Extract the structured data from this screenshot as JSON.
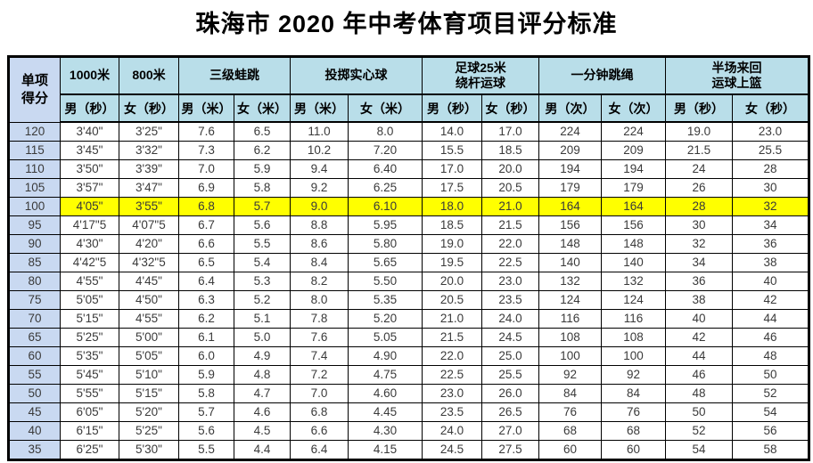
{
  "page_title": "珠海市 2020 年中考体育项目评分标准",
  "table": {
    "corner_header": "单项\n得分",
    "groups": [
      {
        "label": "1000米",
        "subcols": [
          "男（秒）"
        ]
      },
      {
        "label": "800米",
        "subcols": [
          "女（秒）"
        ]
      },
      {
        "label": "三级蛙跳",
        "subcols": [
          "男（米）",
          "女（米）"
        ]
      },
      {
        "label": "投掷实心球",
        "subcols": [
          "男（米）",
          "女（米）"
        ]
      },
      {
        "label": "足球25米\n绕杆运球",
        "subcols": [
          "男（秒）",
          "女（秒）"
        ]
      },
      {
        "label": "一分钟跳绳",
        "subcols": [
          "男（次）",
          "女（次）"
        ]
      },
      {
        "label": "半场来回\n运球上篮",
        "subcols": [
          "男（秒）",
          "女（秒）"
        ]
      }
    ],
    "rows": [
      {
        "score": "120",
        "values": [
          "3'40\"",
          "3'25\"",
          "7.6",
          "6.5",
          "11.0",
          "8.0",
          "14.0",
          "17.0",
          "224",
          "224",
          "19.0",
          "23.0"
        ]
      },
      {
        "score": "115",
        "values": [
          "3'45\"",
          "3'32\"",
          "7.3",
          "6.2",
          "10.2",
          "7.20",
          "15.5",
          "18.5",
          "209",
          "209",
          "21.5",
          "25.5"
        ]
      },
      {
        "score": "110",
        "values": [
          "3'50\"",
          "3'39\"",
          "7.0",
          "5.9",
          "9.4",
          "6.40",
          "17.0",
          "20.0",
          "194",
          "194",
          "24",
          "28"
        ]
      },
      {
        "score": "105",
        "values": [
          "3'57\"",
          "3'47\"",
          "6.9",
          "5.8",
          "9.2",
          "6.25",
          "17.5",
          "20.5",
          "179",
          "179",
          "26",
          "30"
        ]
      },
      {
        "score": "100",
        "values": [
          "4'05\"",
          "3'55\"",
          "6.8",
          "5.7",
          "9.0",
          "6.10",
          "18.0",
          "21.0",
          "164",
          "164",
          "28",
          "32"
        ],
        "highlight": true
      },
      {
        "score": "95",
        "values": [
          "4'17\"5",
          "4'07\"5",
          "6.7",
          "5.6",
          "8.8",
          "5.95",
          "18.5",
          "21.5",
          "156",
          "156",
          "30",
          "34"
        ]
      },
      {
        "score": "90",
        "values": [
          "4'30\"",
          "4'20\"",
          "6.6",
          "5.5",
          "8.6",
          "5.80",
          "19.0",
          "22.0",
          "148",
          "148",
          "32",
          "36"
        ]
      },
      {
        "score": "85",
        "values": [
          "4'42\"5",
          "4'32\"5",
          "6.5",
          "5.4",
          "8.4",
          "5.65",
          "19.5",
          "22.5",
          "140",
          "140",
          "34",
          "38"
        ]
      },
      {
        "score": "80",
        "values": [
          "4'55\"",
          "4'45\"",
          "6.4",
          "5.3",
          "8.2",
          "5.50",
          "20.0",
          "23.0",
          "132",
          "132",
          "36",
          "40"
        ]
      },
      {
        "score": "75",
        "values": [
          "5'05\"",
          "4'50\"",
          "6.3",
          "5.2",
          "8.0",
          "5.35",
          "20.5",
          "23.5",
          "124",
          "124",
          "38",
          "42"
        ]
      },
      {
        "score": "70",
        "values": [
          "5'15\"",
          "4'55\"",
          "6.2",
          "5.1",
          "7.8",
          "5.20",
          "21.0",
          "24.0",
          "116",
          "116",
          "40",
          "44"
        ]
      },
      {
        "score": "65",
        "values": [
          "5'25\"",
          "5'00\"",
          "6.1",
          "5.0",
          "7.6",
          "5.05",
          "21.5",
          "24.5",
          "108",
          "108",
          "42",
          "46"
        ]
      },
      {
        "score": "60",
        "values": [
          "5'35\"",
          "5'05\"",
          "6.0",
          "4.9",
          "7.4",
          "4.90",
          "22.0",
          "25.0",
          "100",
          "100",
          "44",
          "48"
        ]
      },
      {
        "score": "55",
        "values": [
          "5'45\"",
          "5'10\"",
          "5.9",
          "4.8",
          "7.2",
          "4.75",
          "22.5",
          "25.5",
          "92",
          "92",
          "46",
          "50"
        ]
      },
      {
        "score": "50",
        "values": [
          "5'55\"",
          "5'15\"",
          "5.8",
          "4.7",
          "7.0",
          "4.60",
          "23.0",
          "26.0",
          "84",
          "84",
          "48",
          "52"
        ]
      },
      {
        "score": "45",
        "values": [
          "6'05\"",
          "5'20\"",
          "5.7",
          "4.6",
          "6.8",
          "4.45",
          "23.5",
          "26.5",
          "76",
          "76",
          "50",
          "54"
        ]
      },
      {
        "score": "40",
        "values": [
          "6'15\"",
          "5'25\"",
          "5.6",
          "4.5",
          "6.6",
          "4.30",
          "24.0",
          "27.0",
          "68",
          "68",
          "52",
          "56"
        ]
      },
      {
        "score": "35",
        "values": [
          "6'25\"",
          "5'30\"",
          "5.5",
          "4.4",
          "6.4",
          "4.15",
          "24.5",
          "27.5",
          "60",
          "60",
          "54",
          "58"
        ]
      }
    ]
  },
  "colors": {
    "header_bg": "#B9DEE9",
    "score_col_bg": "#C9D9F1",
    "highlight_bg": "#FFFF00",
    "border": "#000000",
    "text": "#3A3A3A"
  }
}
